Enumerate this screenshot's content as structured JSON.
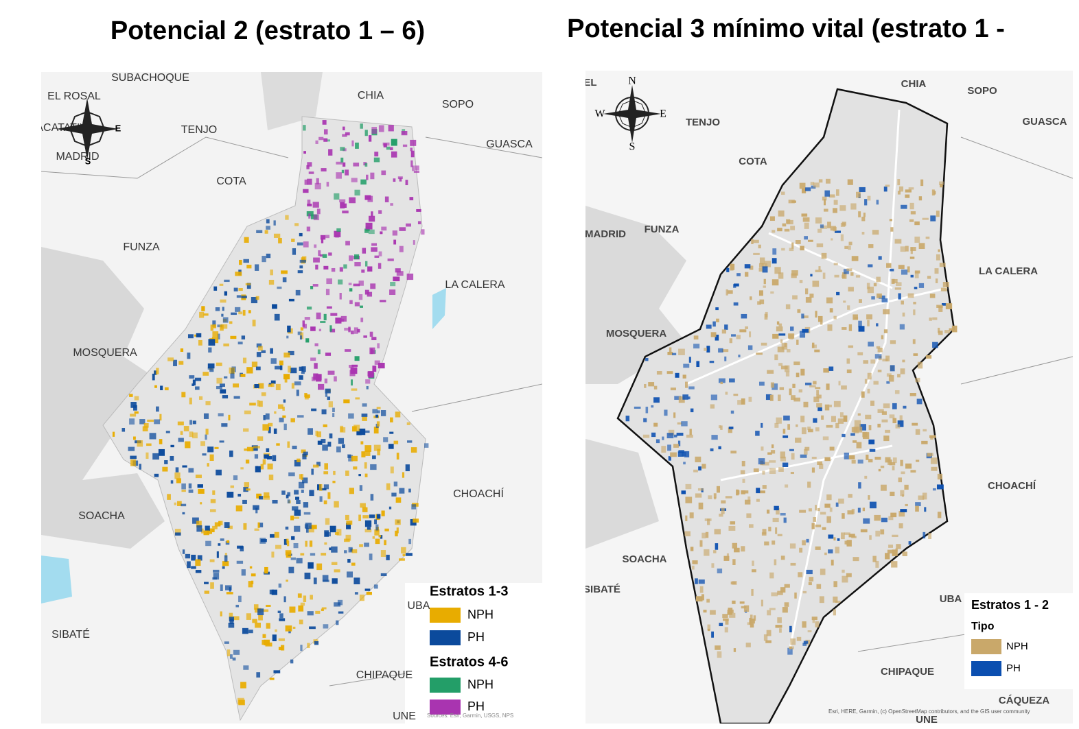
{
  "maps": [
    {
      "title": "Potencial 2 (estrato 1 – 6)",
      "places": [
        "SUBACHOQUE",
        "EL ROSAL",
        "FACATATIVA",
        "MADRID",
        "TENJO",
        "CHIA",
        "SOPO",
        "GUASCA",
        "COTA",
        "FUNZA",
        "LA CALERA",
        "MOSQUERA",
        "SOACHA",
        "CHOACHÍ",
        "SIBATÉ",
        "UBA",
        "CHIPAQUE",
        "UNE"
      ],
      "compass": [
        "E",
        "S"
      ],
      "legend": [
        {
          "title": "Estratos 1-3",
          "items": [
            {
              "label": "NPH",
              "color": "#e8ac00"
            },
            {
              "label": "PH",
              "color": "#0b4a9c"
            }
          ]
        },
        {
          "title": "Estratos 4-6",
          "items": [
            {
              "label": "NPH",
              "color": "#239e68"
            },
            {
              "label": "PH",
              "color": "#a934b0"
            }
          ]
        }
      ],
      "attribution": "Sources: Esri, Garmin, USGS, NPS"
    },
    {
      "title": "Potencial 3 mínimo vital (estrato 1 -",
      "places": [
        "EL",
        "CHIA",
        "SOPO",
        "TENJO",
        "GUASCA",
        "COTA",
        "FUNZA",
        "MADRID",
        "LA CALERA",
        "MOSQUERA",
        "CHOACHÍ",
        "SOACHA",
        "SIBATÉ",
        "UBA",
        "CHIPAQUE",
        "CÁQUEZA",
        "UNE"
      ],
      "compass": [
        "N",
        "W",
        "E",
        "S"
      ],
      "legend": [
        {
          "title": "Estratos 1 - 2",
          "subtitle": "Tipo",
          "items": [
            {
              "label": "NPH",
              "color": "#c9a86a"
            },
            {
              "label": "PH",
              "color": "#0b4fb0"
            }
          ]
        }
      ],
      "attribution": "Esri, HERE, Garmin, (c) OpenStreetMap contributors, and the GIS user community"
    }
  ]
}
